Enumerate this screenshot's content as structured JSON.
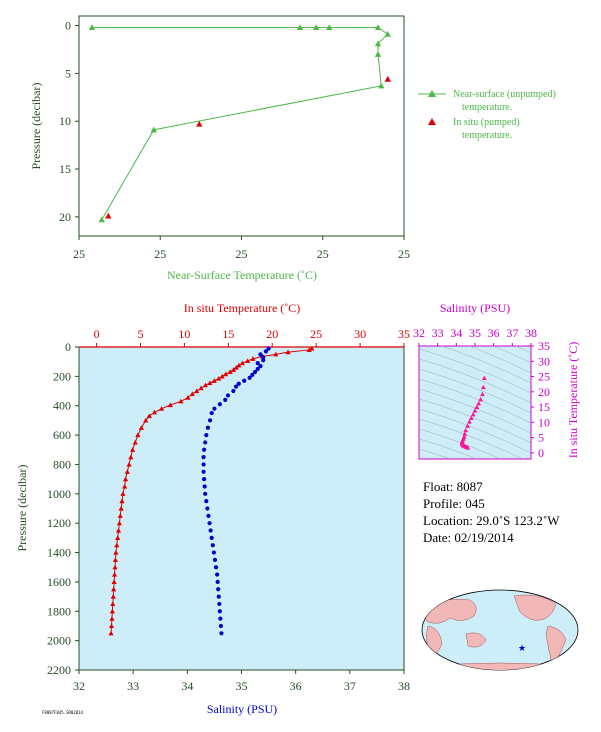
{
  "colors": {
    "green": "#4db848",
    "red": "#e00000",
    "blue": "#0000cc",
    "magenta": "#cc00cc",
    "axis_dark": "#264d26",
    "plot_bg": "#cdeef8",
    "land": "#f2b8b8",
    "ocean": "#cdeef8"
  },
  "chart_data": [
    {
      "id": "near_surface",
      "type": "scatter",
      "xlabel": "Near-Surface Temperature (˚C)",
      "ylabel": "Pressure (decibar)",
      "x_tick_labels": [
        "25",
        "25",
        "25",
        "25",
        "25"
      ],
      "y_ticks": [
        0,
        5,
        10,
        15,
        20
      ],
      "ylim": [
        22,
        -1
      ],
      "xlim": [
        0,
        1
      ],
      "y_reversed": true,
      "legend": [
        "Near-surface (unpumped)",
        "temperature.",
        "In situ (pumped)",
        "temperature."
      ],
      "legend_position": "right",
      "series": [
        {
          "name": "Near-surface (unpumped) temperature.",
          "marker": "triangle",
          "line": true,
          "points": [
            {
              "x": 0.04,
              "y": 0.2
            },
            {
              "x": 0.68,
              "y": 0.2
            },
            {
              "x": 0.73,
              "y": 0.2
            },
            {
              "x": 0.77,
              "y": 0.2
            },
            {
              "x": 0.92,
              "y": 0.2
            },
            {
              "x": 0.95,
              "y": 0.9
            },
            {
              "x": 0.92,
              "y": 1.9
            },
            {
              "x": 0.92,
              "y": 3.0
            },
            {
              "x": 0.93,
              "y": 6.3
            },
            {
              "x": 0.23,
              "y": 10.9
            },
            {
              "x": 0.07,
              "y": 20.3
            }
          ]
        },
        {
          "name": "In situ (pumped) temperature.",
          "marker": "triangle",
          "line": false,
          "points": [
            {
              "x": 0.95,
              "y": 5.6
            },
            {
              "x": 0.37,
              "y": 10.3
            },
            {
              "x": 0.09,
              "y": 19.9
            }
          ]
        }
      ]
    },
    {
      "id": "profile",
      "type": "scatter",
      "ylabel": "Pressure (decibar)",
      "y_ticks": [
        0,
        200,
        400,
        600,
        800,
        1000,
        1200,
        1400,
        1600,
        1800,
        2000,
        2200
      ],
      "ylim": [
        2200,
        0
      ],
      "y_reversed": true,
      "top_axis": {
        "label": "In situ Temperature (˚C)",
        "ticks": [
          0,
          5,
          10,
          15,
          20,
          25,
          30,
          35
        ],
        "range": [
          -2,
          35
        ]
      },
      "bottom_axis": {
        "label": "Salinity (PSU)",
        "ticks": [
          32,
          33,
          34,
          35,
          36,
          37,
          38
        ],
        "range": [
          32,
          38
        ]
      },
      "series": [
        {
          "name": "In situ Temperature",
          "marker": "triangle",
          "line": true,
          "points": [
            {
              "y": 10,
              "t": 24.5
            },
            {
              "y": 20,
              "t": 24.2
            },
            {
              "y": 35,
              "t": 21.8
            },
            {
              "y": 50,
              "t": 20.4
            },
            {
              "y": 65,
              "t": 18.9
            },
            {
              "y": 80,
              "t": 17.8
            },
            {
              "y": 95,
              "t": 17.2
            },
            {
              "y": 110,
              "t": 16.6
            },
            {
              "y": 125,
              "t": 16.2
            },
            {
              "y": 140,
              "t": 15.9
            },
            {
              "y": 155,
              "t": 15.6
            },
            {
              "y": 170,
              "t": 15.2
            },
            {
              "y": 185,
              "t": 14.7
            },
            {
              "y": 200,
              "t": 14.3
            },
            {
              "y": 215,
              "t": 13.9
            },
            {
              "y": 230,
              "t": 13.4
            },
            {
              "y": 245,
              "t": 12.9
            },
            {
              "y": 260,
              "t": 12.4
            },
            {
              "y": 280,
              "t": 11.9
            },
            {
              "y": 300,
              "t": 11.4
            },
            {
              "y": 320,
              "t": 10.9
            },
            {
              "y": 345,
              "t": 10.4
            },
            {
              "y": 370,
              "t": 9.6
            },
            {
              "y": 395,
              "t": 8.4
            },
            {
              "y": 420,
              "t": 7.4
            },
            {
              "y": 445,
              "t": 6.6
            },
            {
              "y": 470,
              "t": 6.0
            },
            {
              "y": 500,
              "t": 5.6
            },
            {
              "y": 550,
              "t": 5.1
            },
            {
              "y": 600,
              "t": 4.7
            },
            {
              "y": 650,
              "t": 4.4
            },
            {
              "y": 700,
              "t": 4.1
            },
            {
              "y": 750,
              "t": 3.9
            },
            {
              "y": 800,
              "t": 3.7
            },
            {
              "y": 850,
              "t": 3.5
            },
            {
              "y": 900,
              "t": 3.3
            },
            {
              "y": 950,
              "t": 3.2
            },
            {
              "y": 1000,
              "t": 3.0
            },
            {
              "y": 1050,
              "t": 2.9
            },
            {
              "y": 1100,
              "t": 2.8
            },
            {
              "y": 1150,
              "t": 2.7
            },
            {
              "y": 1200,
              "t": 2.6
            },
            {
              "y": 1250,
              "t": 2.5
            },
            {
              "y": 1300,
              "t": 2.4
            },
            {
              "y": 1350,
              "t": 2.3
            },
            {
              "y": 1400,
              "t": 2.2
            },
            {
              "y": 1450,
              "t": 2.15
            },
            {
              "y": 1500,
              "t": 2.1
            },
            {
              "y": 1550,
              "t": 2.05
            },
            {
              "y": 1600,
              "t": 2.0
            },
            {
              "y": 1650,
              "t": 1.95
            },
            {
              "y": 1700,
              "t": 1.9
            },
            {
              "y": 1750,
              "t": 1.85
            },
            {
              "y": 1800,
              "t": 1.8
            },
            {
              "y": 1850,
              "t": 1.75
            },
            {
              "y": 1900,
              "t": 1.7
            },
            {
              "y": 1950,
              "t": 1.65
            }
          ]
        },
        {
          "name": "Salinity",
          "marker": "dot",
          "line": false,
          "points": [
            {
              "y": 10,
              "s": 35.5
            },
            {
              "y": 30,
              "s": 35.45
            },
            {
              "y": 50,
              "s": 35.35
            },
            {
              "y": 70,
              "s": 35.4
            },
            {
              "y": 90,
              "s": 35.4
            },
            {
              "y": 110,
              "s": 35.3
            },
            {
              "y": 130,
              "s": 35.35
            },
            {
              "y": 150,
              "s": 35.3
            },
            {
              "y": 170,
              "s": 35.25
            },
            {
              "y": 190,
              "s": 35.2
            },
            {
              "y": 210,
              "s": 35.15
            },
            {
              "y": 230,
              "s": 35.05
            },
            {
              "y": 250,
              "s": 34.95
            },
            {
              "y": 270,
              "s": 34.9
            },
            {
              "y": 300,
              "s": 34.85
            },
            {
              "y": 330,
              "s": 34.75
            },
            {
              "y": 360,
              "s": 34.7
            },
            {
              "y": 390,
              "s": 34.6
            },
            {
              "y": 420,
              "s": 34.5
            },
            {
              "y": 450,
              "s": 34.45
            },
            {
              "y": 500,
              "s": 34.42
            },
            {
              "y": 550,
              "s": 34.38
            },
            {
              "y": 600,
              "s": 34.35
            },
            {
              "y": 650,
              "s": 34.33
            },
            {
              "y": 700,
              "s": 34.31
            },
            {
              "y": 750,
              "s": 34.3
            },
            {
              "y": 800,
              "s": 34.3
            },
            {
              "y": 850,
              "s": 34.3
            },
            {
              "y": 900,
              "s": 34.31
            },
            {
              "y": 950,
              "s": 34.32
            },
            {
              "y": 1000,
              "s": 34.33
            },
            {
              "y": 1050,
              "s": 34.35
            },
            {
              "y": 1100,
              "s": 34.37
            },
            {
              "y": 1150,
              "s": 34.39
            },
            {
              "y": 1200,
              "s": 34.41
            },
            {
              "y": 1250,
              "s": 34.43
            },
            {
              "y": 1300,
              "s": 34.45
            },
            {
              "y": 1350,
              "s": 34.47
            },
            {
              "y": 1400,
              "s": 34.49
            },
            {
              "y": 1450,
              "s": 34.51
            },
            {
              "y": 1500,
              "s": 34.53
            },
            {
              "y": 1550,
              "s": 34.55
            },
            {
              "y": 1600,
              "s": 34.56
            },
            {
              "y": 1650,
              "s": 34.57
            },
            {
              "y": 1700,
              "s": 34.58
            },
            {
              "y": 1750,
              "s": 34.59
            },
            {
              "y": 1800,
              "s": 34.6
            },
            {
              "y": 1850,
              "s": 34.61
            },
            {
              "y": 1900,
              "s": 34.62
            },
            {
              "y": 1950,
              "s": 34.63
            }
          ]
        }
      ]
    },
    {
      "id": "ts_diagram",
      "type": "scatter",
      "top_axis": {
        "label": "Salinity (PSU)",
        "ticks": [
          32,
          33,
          34,
          35,
          36,
          37,
          38
        ],
        "range": [
          32,
          38
        ]
      },
      "right_axis": {
        "label": "In situ Temperature (˚C)",
        "ticks": [
          0,
          5,
          10,
          15,
          20,
          25,
          30,
          35
        ],
        "range": [
          -2,
          35
        ]
      },
      "points": [
        {
          "s": 35.5,
          "t": 24.5
        },
        {
          "s": 35.45,
          "t": 21.5
        },
        {
          "s": 35.4,
          "t": 19.2
        },
        {
          "s": 35.3,
          "t": 17.5
        },
        {
          "s": 35.2,
          "t": 16.2
        },
        {
          "s": 35.1,
          "t": 15.0
        },
        {
          "s": 35.0,
          "t": 13.8
        },
        {
          "s": 34.9,
          "t": 12.6
        },
        {
          "s": 34.8,
          "t": 11.4
        },
        {
          "s": 34.7,
          "t": 10.2
        },
        {
          "s": 34.6,
          "t": 8.8
        },
        {
          "s": 34.5,
          "t": 7.4
        },
        {
          "s": 34.45,
          "t": 6.2
        },
        {
          "s": 34.42,
          "t": 5.3
        },
        {
          "s": 34.38,
          "t": 4.6
        },
        {
          "s": 34.33,
          "t": 4.0
        },
        {
          "s": 34.31,
          "t": 3.5
        },
        {
          "s": 34.3,
          "t": 3.1
        },
        {
          "s": 34.33,
          "t": 2.7
        },
        {
          "s": 34.38,
          "t": 2.4
        },
        {
          "s": 34.45,
          "t": 2.2
        },
        {
          "s": 34.51,
          "t": 2.0
        },
        {
          "s": 34.57,
          "t": 1.85
        },
        {
          "s": 34.62,
          "t": 1.7
        }
      ]
    }
  ],
  "float_info": {
    "float": "Float:  8087",
    "profile": "Profile:  045",
    "location": "Location:  29.0˚S  123.2˚W",
    "date": "Date:  02/19/2014"
  },
  "map": {
    "float_lat": -29.0,
    "float_lon": -123.2
  },
  "footer": "F8087F045.SR02014"
}
